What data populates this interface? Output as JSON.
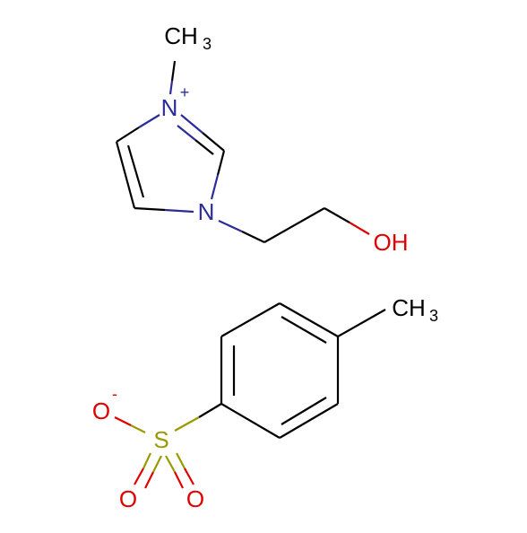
{
  "atoms": [
    {
      "label": "CH",
      "sub": "3"
    },
    {
      "label": "N",
      "charge": "+"
    },
    {
      "label": "N"
    },
    {
      "label": "OH"
    },
    {
      "label": "CH",
      "sub": "3"
    },
    {
      "label": "O",
      "charge": "-"
    },
    {
      "label": "S"
    },
    {
      "label": "O"
    },
    {
      "label": "O"
    }
  ]
}
